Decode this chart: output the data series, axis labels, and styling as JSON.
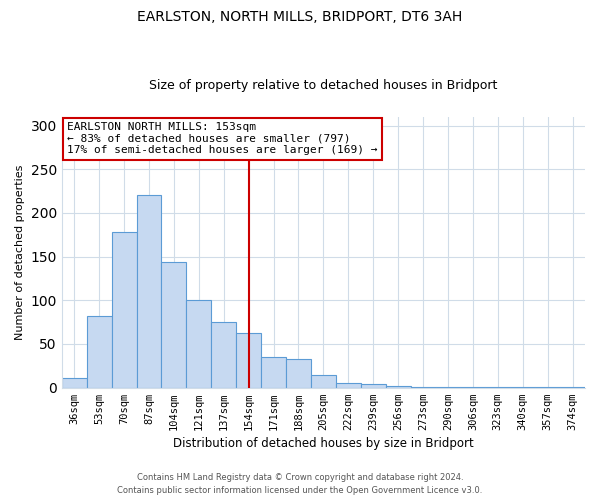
{
  "title": "EARLSTON, NORTH MILLS, BRIDPORT, DT6 3AH",
  "subtitle": "Size of property relative to detached houses in Bridport",
  "xlabel": "Distribution of detached houses by size in Bridport",
  "ylabel": "Number of detached properties",
  "bar_labels": [
    "36sqm",
    "53sqm",
    "70sqm",
    "87sqm",
    "104sqm",
    "121sqm",
    "137sqm",
    "154sqm",
    "171sqm",
    "188sqm",
    "205sqm",
    "222sqm",
    "239sqm",
    "256sqm",
    "273sqm",
    "290sqm",
    "306sqm",
    "323sqm",
    "340sqm",
    "357sqm",
    "374sqm"
  ],
  "bar_values": [
    11,
    82,
    178,
    221,
    144,
    100,
    75,
    63,
    35,
    33,
    15,
    5,
    4,
    2,
    1,
    1,
    1,
    1,
    1,
    1,
    1
  ],
  "bar_color": "#c6d9f1",
  "bar_edge_color": "#5b9bd5",
  "vline_index": 7,
  "vline_color": "#cc0000",
  "annotation_title": "EARLSTON NORTH MILLS: 153sqm",
  "annotation_line1": "← 83% of detached houses are smaller (797)",
  "annotation_line2": "17% of semi-detached houses are larger (169) →",
  "annotation_box_edge": "#cc0000",
  "ylim": [
    0,
    310
  ],
  "yticks": [
    0,
    50,
    100,
    150,
    200,
    250,
    300
  ],
  "footer1": "Contains HM Land Registry data © Crown copyright and database right 2024.",
  "footer2": "Contains public sector information licensed under the Open Government Licence v3.0.",
  "bg_color": "#ffffff",
  "grid_color": "#d0dce8"
}
